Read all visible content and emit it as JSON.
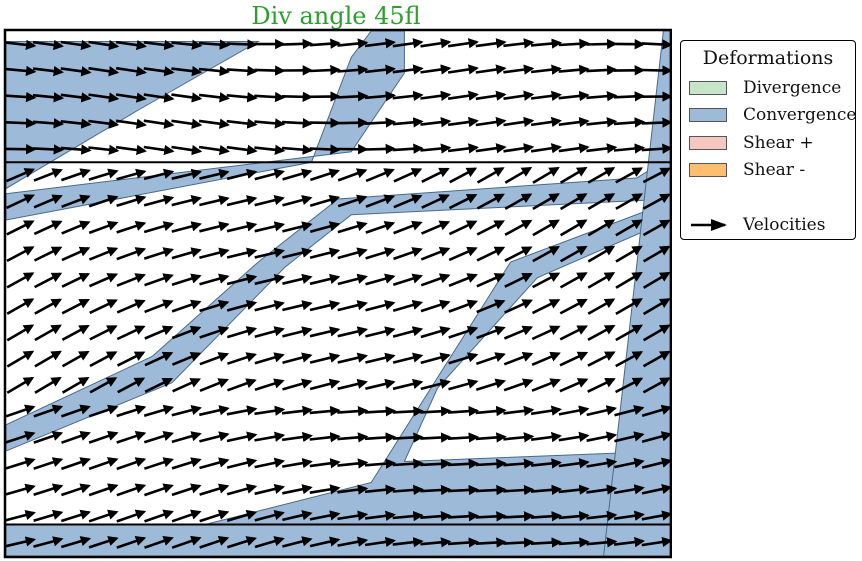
{
  "chart_data": {
    "type": "quiver",
    "title": "Div angle 45fl",
    "title_color": "#2ca02c",
    "legend": {
      "title": "Deformations",
      "placement": "right",
      "items": [
        {
          "label": "Divergence",
          "color": "#c7e3c8"
        },
        {
          "label": "Convergence",
          "color": "#9dbbd8"
        },
        {
          "label": "Shear +",
          "color": "#f4c8c0"
        },
        {
          "label": "Shear -",
          "color": "#fdbf6f"
        }
      ],
      "arrow_label": "Velocities"
    },
    "axes": {
      "ticks": "none",
      "grid": false
    },
    "convergence_bands": [
      {
        "polygon": [
          [
            0.0,
            0.98
          ],
          [
            0.38,
            0.98
          ],
          [
            0.2,
            0.85
          ],
          [
            0.0,
            0.7
          ]
        ]
      },
      {
        "polygon": [
          [
            0.0,
            0.69
          ],
          [
            0.0,
            0.64
          ],
          [
            0.46,
            0.75
          ],
          [
            0.52,
            0.95
          ],
          [
            0.55,
            1.0
          ],
          [
            0.6,
            1.0
          ],
          [
            0.6,
            0.92
          ],
          [
            0.52,
            0.77
          ]
        ]
      },
      {
        "polygon": [
          [
            0.0,
            0.2
          ],
          [
            0.0,
            0.25
          ],
          [
            0.22,
            0.38
          ],
          [
            0.38,
            0.56
          ],
          [
            0.5,
            0.68
          ],
          [
            0.95,
            0.72
          ],
          [
            1.0,
            0.76
          ],
          [
            1.0,
            0.68
          ],
          [
            0.52,
            0.65
          ],
          [
            0.42,
            0.55
          ],
          [
            0.25,
            0.33
          ]
        ]
      },
      {
        "polygon": [
          [
            0.0,
            0.0
          ],
          [
            0.0,
            0.06
          ],
          [
            0.3,
            0.06
          ],
          [
            0.55,
            0.14
          ],
          [
            0.68,
            0.4
          ],
          [
            0.76,
            0.56
          ],
          [
            0.97,
            0.66
          ],
          [
            1.0,
            0.7
          ],
          [
            1.0,
            0.64
          ],
          [
            0.8,
            0.53
          ],
          [
            0.65,
            0.32
          ],
          [
            0.6,
            0.18
          ],
          [
            1.0,
            0.2
          ],
          [
            1.0,
            0.0
          ]
        ]
      },
      {
        "polygon": [
          [
            0.9,
            0.0
          ],
          [
            1.0,
            0.0
          ],
          [
            1.0,
            1.0
          ],
          [
            0.99,
            1.0
          ]
        ]
      }
    ],
    "divider_lines_y": [
      0.75,
      0.06
    ],
    "velocity_field": {
      "grid_cols": 24,
      "grid_rows": 20,
      "regions": [
        {
          "name": "top",
          "y_min": 0.75,
          "y_max": 1.0,
          "u": 1.0,
          "v": 0.0
        },
        {
          "name": "middle",
          "y_min": 0.3,
          "y_max": 0.75,
          "u": 0.85,
          "v": 0.35
        },
        {
          "name": "bottom",
          "y_min": 0.0,
          "y_max": 0.3,
          "u": 1.0,
          "v": 0.2
        }
      ]
    }
  }
}
